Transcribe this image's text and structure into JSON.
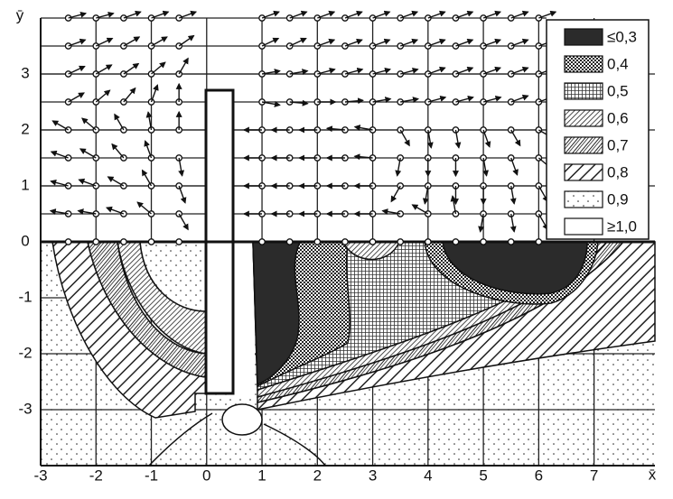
{
  "chart_data": {
    "type": "vector-contour",
    "x_label": "x̄",
    "y_label": "ȳ",
    "xlim": [
      -3,
      8.1
    ],
    "ylim": [
      -4,
      4
    ],
    "xticks": [
      -3,
      -2,
      -1,
      0,
      1,
      2,
      3,
      4,
      5,
      6,
      7
    ],
    "yticks": [
      -3,
      -2,
      -1,
      0,
      1,
      2,
      3
    ],
    "levels": [
      {
        "value": 0.3,
        "label": "≤0,3"
      },
      {
        "value": 0.4,
        "label": "0,4"
      },
      {
        "value": 0.5,
        "label": "0,5"
      },
      {
        "value": 0.6,
        "label": "0,6"
      },
      {
        "value": 0.7,
        "label": "0,7"
      },
      {
        "value": 0.8,
        "label": "0,8"
      },
      {
        "value": 0.9,
        "label": "0,9"
      },
      {
        "value": 1.0,
        "label": "≥1,0"
      }
    ],
    "vectors": {
      "x": [
        -2.5,
        -2,
        -1.5,
        -1,
        -0.5,
        1,
        1.5,
        2,
        2.5,
        3,
        3.5,
        4,
        4.5,
        5,
        5.5,
        6
      ],
      "y": [
        4,
        3.5,
        3,
        2.5,
        2,
        1.5,
        1,
        0.5
      ],
      "angle": [
        [
          15,
          15,
          20,
          20,
          20,
          20,
          20,
          20,
          20,
          20,
          20,
          20,
          20,
          20,
          20,
          20
        ],
        [
          20,
          25,
          30,
          30,
          35,
          25,
          25,
          20,
          20,
          20,
          20,
          20,
          20,
          20,
          20,
          20
        ],
        [
          25,
          30,
          35,
          40,
          60,
          10,
          10,
          15,
          15,
          15,
          15,
          20,
          20,
          20,
          20,
          20
        ],
        [
          30,
          40,
          50,
          70,
          90,
          -10,
          -5,
          0,
          5,
          10,
          10,
          15,
          15,
          15,
          20,
          20
        ],
        [
          150,
          140,
          120,
          100,
          90,
          180,
          180,
          180,
          175,
          170,
          -60,
          -80,
          -80,
          -70,
          -60,
          -30
        ],
        [
          160,
          150,
          130,
          110,
          -80,
          180,
          180,
          180,
          180,
          175,
          -100,
          -90,
          -90,
          -80,
          -70,
          -40
        ],
        [
          165,
          160,
          150,
          120,
          -70,
          180,
          180,
          180,
          180,
          180,
          -120,
          -100,
          -90,
          -90,
          -80,
          -60
        ],
        [
          170,
          170,
          160,
          140,
          -60,
          180,
          180,
          180,
          180,
          180,
          170,
          150,
          100,
          -100,
          -80,
          -60
        ]
      ]
    }
  }
}
